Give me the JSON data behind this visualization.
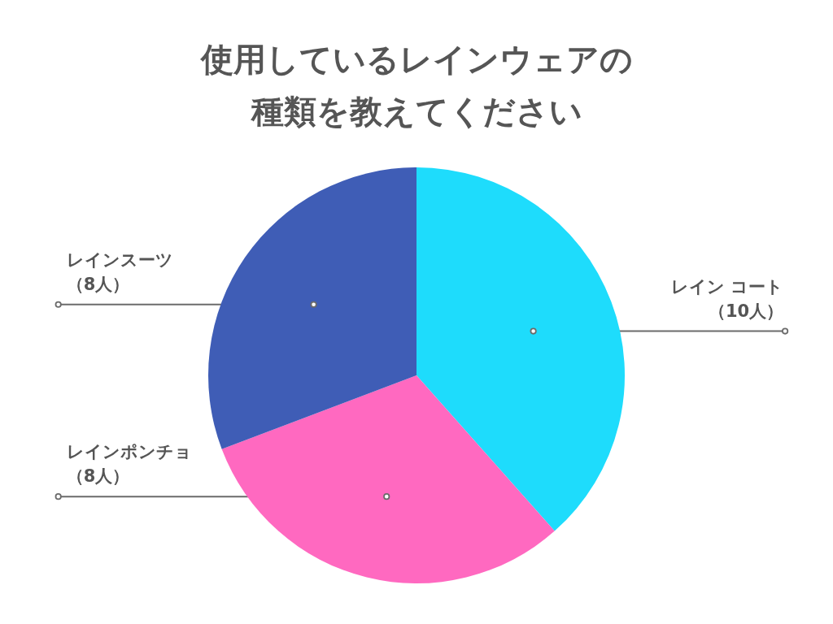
{
  "chart_data": {
    "type": "pie",
    "title": "使用しているレインウェアの種類を教えてください",
    "categories": [
      "レイン コート",
      "レインポンチョ",
      "レインスーツ"
    ],
    "values": [
      10,
      8,
      8
    ],
    "value_labels": [
      "（10人）",
      "（8人）",
      "（8人）"
    ],
    "colors": [
      "#1edcfc",
      "#ff69c0",
      "#3f5db6"
    ],
    "legend": false
  }
}
